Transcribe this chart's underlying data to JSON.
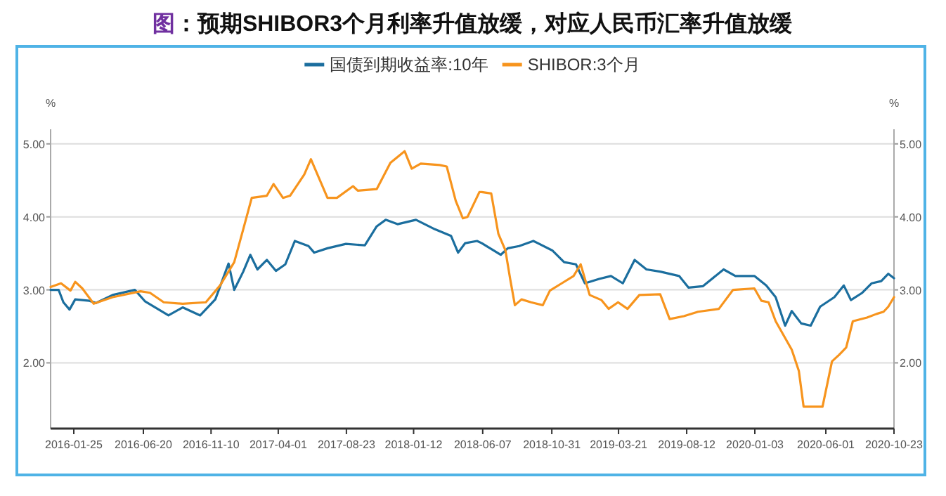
{
  "chart_data": {
    "type": "line",
    "title": "图：预期SHIBOR3个月利率升值放缓，对应人民币汇率升值放缓",
    "ylabel": "%",
    "y2label": "%",
    "legend": "top",
    "grid": "y",
    "marker": "none",
    "line_style": "solid",
    "xlim": [
      "2015-12-07",
      "2020-10-23"
    ],
    "xticks": [
      "2016-01-25",
      "2016-06-20",
      "2016-11-10",
      "2017-04-01",
      "2017-08-23",
      "2018-01-12",
      "2018-06-07",
      "2018-10-31",
      "2019-03-21",
      "2019-08-12",
      "2020-01-03",
      "2020-06-01",
      "2020-10-23"
    ],
    "ylim": [
      1.1,
      5.2
    ],
    "yticks": [
      {
        "value": 2,
        "label": "2.00"
      },
      {
        "value": 3,
        "label": "3.00"
      },
      {
        "value": 4,
        "label": "4.00"
      },
      {
        "value": 5,
        "label": "5.00"
      }
    ],
    "y2lim": [
      1.1,
      5.2
    ],
    "y2ticks": [
      {
        "value": 2,
        "label": "2.00"
      },
      {
        "value": 3,
        "label": "3.00"
      },
      {
        "value": 4,
        "label": "4.00"
      },
      {
        "value": 5,
        "label": "5.00"
      }
    ],
    "series": [
      {
        "name": "国债到期收益率:10年",
        "color": "#1b6e9e",
        "x": [
          "2015-12-07",
          "2015-12-24",
          "2016-01-03",
          "2016-01-16",
          "2016-01-28",
          "2016-02-27",
          "2016-03-12",
          "2016-04-16",
          "2016-06-02",
          "2016-06-24",
          "2016-08-12",
          "2016-09-11",
          "2016-10-18",
          "2016-11-19",
          "2016-12-17",
          "2016-12-29",
          "2017-01-17",
          "2017-02-01",
          "2017-02-16",
          "2017-03-08",
          "2017-03-27",
          "2017-04-16",
          "2017-05-06",
          "2017-06-04",
          "2017-06-16",
          "2017-07-14",
          "2017-08-22",
          "2017-10-01",
          "2017-10-26",
          "2017-11-14",
          "2017-12-09",
          "2018-01-17",
          "2018-02-26",
          "2018-04-01",
          "2018-04-16",
          "2018-05-01",
          "2018-05-26",
          "2018-06-05",
          "2018-07-15",
          "2018-07-30",
          "2018-08-23",
          "2018-09-22",
          "2018-11-01",
          "2018-11-26",
          "2018-12-21",
          "2019-01-09",
          "2019-02-08",
          "2019-03-05",
          "2019-03-30",
          "2019-04-24",
          "2019-05-19",
          "2019-06-17",
          "2019-07-27",
          "2019-08-16",
          "2019-09-15",
          "2019-10-29",
          "2019-11-23",
          "2020-01-02",
          "2020-01-27",
          "2020-02-16",
          "2020-03-07",
          "2020-03-21",
          "2020-04-10",
          "2020-04-30",
          "2020-05-20",
          "2020-06-19",
          "2020-07-09",
          "2020-07-24",
          "2020-08-17",
          "2020-09-06",
          "2020-09-26",
          "2020-10-11",
          "2020-10-23"
        ],
        "values": [
          3.0,
          3.0,
          2.83,
          2.73,
          2.87,
          2.85,
          2.82,
          2.93,
          3.0,
          2.84,
          2.65,
          2.76,
          2.65,
          2.87,
          3.36,
          3.0,
          3.25,
          3.48,
          3.28,
          3.41,
          3.26,
          3.35,
          3.67,
          3.6,
          3.51,
          3.57,
          3.63,
          3.61,
          3.87,
          3.96,
          3.9,
          3.96,
          3.83,
          3.74,
          3.51,
          3.64,
          3.67,
          3.64,
          3.48,
          3.57,
          3.6,
          3.67,
          3.54,
          3.38,
          3.35,
          3.09,
          3.15,
          3.19,
          3.09,
          3.41,
          3.28,
          3.25,
          3.19,
          3.03,
          3.05,
          3.28,
          3.19,
          3.19,
          3.06,
          2.9,
          2.51,
          2.71,
          2.54,
          2.51,
          2.77,
          2.9,
          3.06,
          2.86,
          2.96,
          3.09,
          3.12,
          3.22,
          3.16
        ]
      },
      {
        "name": "SHIBOR:3个月",
        "color": "#f7941d",
        "x": [
          "2015-12-07",
          "2015-12-29",
          "2016-01-18",
          "2016-01-28",
          "2016-02-12",
          "2016-03-07",
          "2016-04-16",
          "2016-06-14",
          "2016-07-04",
          "2016-08-02",
          "2016-09-11",
          "2016-10-30",
          "2016-11-29",
          "2016-12-29",
          "2017-01-17",
          "2017-02-04",
          "2017-03-08",
          "2017-03-22",
          "2017-04-11",
          "2017-04-26",
          "2017-05-26",
          "2017-06-09",
          "2017-07-14",
          "2017-08-03",
          "2017-09-06",
          "2017-09-16",
          "2017-10-26",
          "2017-11-24",
          "2017-12-24",
          "2018-01-08",
          "2018-01-27",
          "2018-03-08",
          "2018-03-23",
          "2018-04-11",
          "2018-04-26",
          "2018-05-06",
          "2018-05-31",
          "2018-06-05",
          "2018-06-25",
          "2018-07-10",
          "2018-07-25",
          "2018-08-04",
          "2018-08-14",
          "2018-08-28",
          "2018-09-17",
          "2018-10-12",
          "2018-10-27",
          "2018-11-21",
          "2018-12-16",
          "2018-12-31",
          "2019-01-19",
          "2019-02-13",
          "2019-02-28",
          "2019-03-20",
          "2019-04-09",
          "2019-05-04",
          "2019-06-17",
          "2019-07-07",
          "2019-08-06",
          "2019-09-05",
          "2019-10-19",
          "2019-11-18",
          "2020-01-02",
          "2020-01-17",
          "2020-02-01",
          "2020-02-16",
          "2020-03-21",
          "2020-04-05",
          "2020-04-15",
          "2020-05-25",
          "2020-06-14",
          "2020-06-29",
          "2020-07-14",
          "2020-07-28",
          "2020-08-27",
          "2020-09-16",
          "2020-10-01",
          "2020-10-11",
          "2020-10-23"
        ],
        "values": [
          3.04,
          3.09,
          2.99,
          3.11,
          3.02,
          2.81,
          2.9,
          2.98,
          2.96,
          2.83,
          2.81,
          2.83,
          3.06,
          3.38,
          3.83,
          4.26,
          4.29,
          4.45,
          4.26,
          4.29,
          4.58,
          4.79,
          4.26,
          4.26,
          4.42,
          4.36,
          4.38,
          4.74,
          4.9,
          4.66,
          4.73,
          4.71,
          4.69,
          4.22,
          3.98,
          4.0,
          4.34,
          4.34,
          4.32,
          3.77,
          3.54,
          3.15,
          2.79,
          2.87,
          2.83,
          2.79,
          2.99,
          3.09,
          3.19,
          3.35,
          2.93,
          2.86,
          2.74,
          2.83,
          2.74,
          2.93,
          2.94,
          2.6,
          2.64,
          2.7,
          2.74,
          3.0,
          3.02,
          2.85,
          2.83,
          2.57,
          2.18,
          1.89,
          1.4,
          1.4,
          2.02,
          2.11,
          2.21,
          2.57,
          2.62,
          2.67,
          2.7,
          2.77,
          2.9
        ]
      }
    ]
  }
}
